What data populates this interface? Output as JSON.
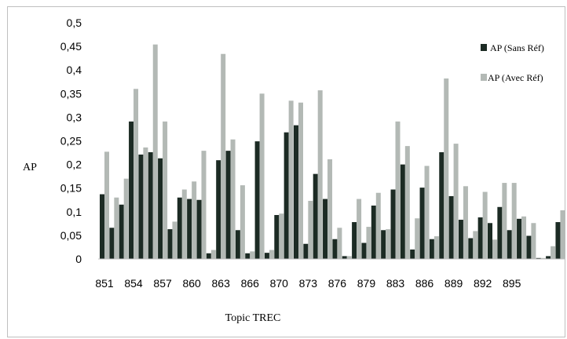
{
  "chart_data": {
    "type": "bar",
    "title": "",
    "xlabel": "Topic TREC",
    "ylabel": "AP",
    "ylim": [
      0,
      0.5
    ],
    "y_ticks": [
      "0",
      "0,05",
      "0,1",
      "0,15",
      "0,2",
      "0,25",
      "0,3",
      "0,35",
      "0,4",
      "0,45",
      "0,5"
    ],
    "x_tick_labels": [
      {
        "label": "851",
        "index": 0
      },
      {
        "label": "854",
        "index": 3
      },
      {
        "label": "857",
        "index": 6
      },
      {
        "label": "860",
        "index": 9
      },
      {
        "label": "863",
        "index": 12
      },
      {
        "label": "866",
        "index": 15
      },
      {
        "label": "870",
        "index": 18
      },
      {
        "label": "873",
        "index": 21
      },
      {
        "label": "876",
        "index": 24
      },
      {
        "label": "879",
        "index": 27
      },
      {
        "label": "883",
        "index": 30
      },
      {
        "label": "886",
        "index": 33
      },
      {
        "label": "889",
        "index": 36
      },
      {
        "label": "892",
        "index": 39
      },
      {
        "label": "895",
        "index": 42
      }
    ],
    "grid": false,
    "legend_position": "right",
    "series": [
      {
        "name": "AP (Sans Réf)",
        "color": "#1c2b24",
        "values": [
          0.137,
          0.066,
          0.115,
          0.291,
          0.221,
          0.226,
          0.213,
          0.063,
          0.13,
          0.127,
          0.125,
          0.012,
          0.209,
          0.229,
          0.061,
          0.012,
          0.249,
          0.013,
          0.093,
          0.268,
          0.283,
          0.032,
          0.18,
          0.127,
          0.042,
          0.006,
          0.078,
          0.034,
          0.113,
          0.061,
          0.147,
          0.2,
          0.02,
          0.151,
          0.042,
          0.226,
          0.133,
          0.083,
          0.044,
          0.088,
          0.076,
          0.11,
          0.061,
          0.085,
          0.049,
          0.002,
          0.006,
          0.078
        ]
      },
      {
        "name": "AP (Avec Réf)",
        "color": "#b3b9b5",
        "values": [
          0.227,
          0.13,
          0.17,
          0.36,
          0.236,
          0.454,
          0.291,
          0.079,
          0.147,
          0.164,
          0.229,
          0.019,
          0.434,
          0.253,
          0.156,
          0.016,
          0.35,
          0.019,
          0.096,
          0.335,
          0.331,
          0.123,
          0.357,
          0.211,
          0.066,
          0.006,
          0.127,
          0.068,
          0.14,
          0.063,
          0.291,
          0.239,
          0.086,
          0.197,
          0.048,
          0.382,
          0.244,
          0.154,
          0.059,
          0.142,
          0.041,
          0.161,
          0.161,
          0.09,
          0.076,
          0.002,
          0.027,
          0.103
        ]
      }
    ]
  }
}
